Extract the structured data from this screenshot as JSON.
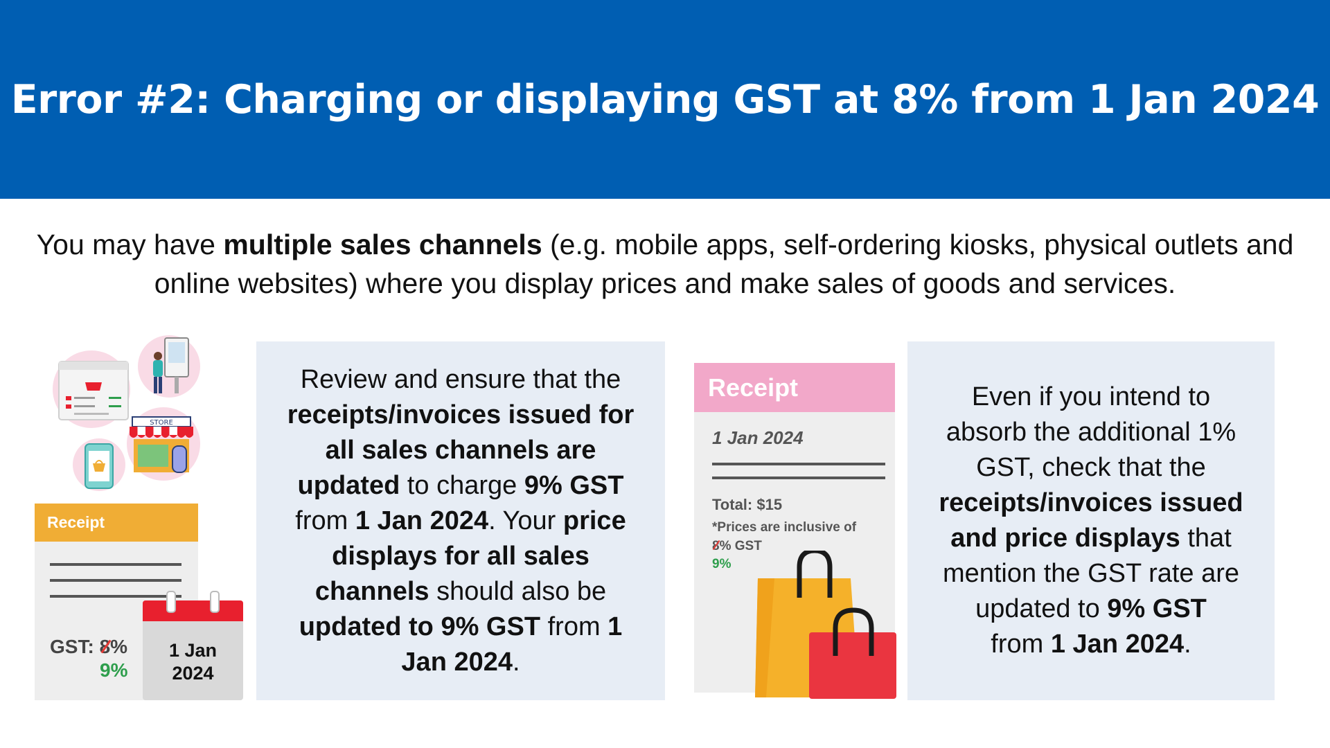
{
  "banner": {
    "title": "Error #2: Charging or displaying GST at 8% from 1 Jan 2024"
  },
  "intro": {
    "text_a": "You may have ",
    "text_bold": "multiple sales channels",
    "text_b": " (e.g. mobile apps, self-ordering kiosks, physical outlets and online websites) where you display prices and make sales of goods and services."
  },
  "illustration_left": {
    "store_label": "STORE",
    "receipt_title": "Receipt",
    "gst_label": "GST: ",
    "gst_old": "8",
    "gst_old_suffix": "%",
    "gst_new": "9%",
    "calendar_line1": "1 Jan",
    "calendar_line2": "2024"
  },
  "panel1": {
    "t1": "Review and ensure that the ",
    "b1": "receipts/invoices issued for all sales channels are updated",
    "t2": " to charge ",
    "b2": "9% GST",
    "t3": " from ",
    "b3": "1 Jan 2024",
    "t4": ". Your ",
    "b4": "price displays for all sales channels",
    "t5": " should also be ",
    "b5": "updated to 9% GST",
    "t6": " from ",
    "b6": "1 Jan 2024",
    "t7": "."
  },
  "receipt_right": {
    "title": "Receipt",
    "date": "1 Jan 2024",
    "total": "Total: $15",
    "note_line1": "*Prices are inclusive of",
    "note_old": "8",
    "note_suffix": "% GST",
    "note_new": "9%"
  },
  "panel2": {
    "t1": "Even if you intend to absorb the additional 1% GST, check that the ",
    "b1": "receipts/invoices issued and price displays",
    "t2": " that mention the GST rate are updated to ",
    "b2": "9% GST",
    "t3": " from ",
    "b3": "1 Jan 2024",
    "t4": "."
  },
  "colors": {
    "banner": "#005eb2",
    "panel": "#e7edf5",
    "receipt_left_header": "#f0ad35",
    "receipt_right_header": "#f2a8c9",
    "new_rate": "#2e9e4c",
    "strike": "#e53935",
    "calendar": "#e8202e"
  },
  "icons": [
    "shop-window-icon",
    "kiosk-icon",
    "store-icon",
    "mobile-app-icon",
    "calendar-icon",
    "shopping-bags-icon"
  ]
}
